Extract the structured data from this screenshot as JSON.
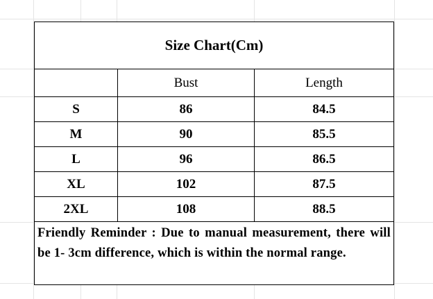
{
  "title": "Size Chart(Cm)",
  "columns": [
    "",
    "Bust",
    "Length"
  ],
  "rows": [
    {
      "size": "S",
      "bust": "86",
      "length": "84.5"
    },
    {
      "size": "M",
      "bust": "90",
      "length": "85.5"
    },
    {
      "size": "L",
      "bust": "96",
      "length": "86.5"
    },
    {
      "size": "XL",
      "bust": "102",
      "length": "87.5"
    },
    {
      "size": "2XL",
      "bust": "108",
      "length": "88.5"
    }
  ],
  "reminder": "Friendly Reminder : Due to manual measurement, there will be 1- 3cm difference, which is within the normal range."
}
